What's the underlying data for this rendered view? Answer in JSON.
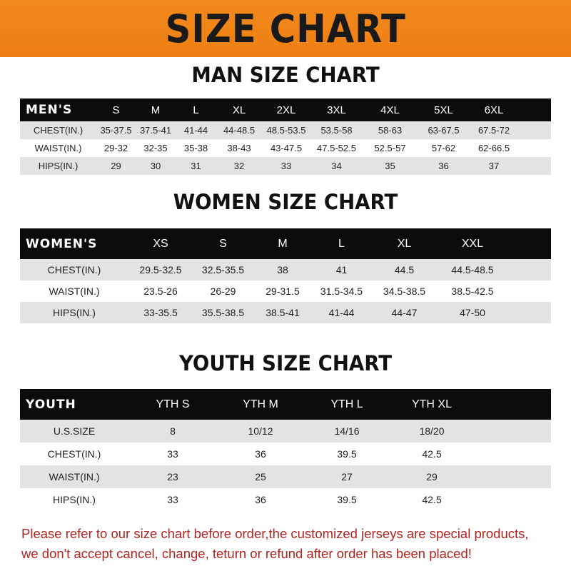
{
  "banner": "SIZE CHART",
  "men": {
    "title": "MAN SIZE CHART",
    "header": [
      "MEN'S",
      "S",
      "M",
      "L",
      "XL",
      "2XL",
      "3XL",
      "4XL",
      "5XL",
      "6XL"
    ],
    "rows": [
      [
        "CHEST(IN.)",
        "35-37.5",
        "37.5-41",
        "41-44",
        "44-48.5",
        "48.5-53.5",
        "53.5-58",
        "58-63",
        "63-67.5",
        "67.5-72"
      ],
      [
        "WAIST(IN.)",
        "29-32",
        "32-35",
        "35-38",
        "38-43",
        "43-47.5",
        "47.5-52.5",
        "52.5-57",
        "57-62",
        "62-66.5"
      ],
      [
        "HIPS(IN.)",
        "29",
        "30",
        "31",
        "32",
        "33",
        "34",
        "35",
        "36",
        "37"
      ]
    ]
  },
  "women": {
    "title": "WOMEN SIZE CHART",
    "header": [
      "WOMEN'S",
      "XS",
      "S",
      "M",
      "L",
      "XL",
      "XXL"
    ],
    "rows": [
      [
        "CHEST(IN.)",
        "29.5-32.5",
        "32.5-35.5",
        "38",
        "41",
        "44.5",
        "44.5-48.5"
      ],
      [
        "WAIST(IN.)",
        "23.5-26",
        "26-29",
        "29-31.5",
        "31.5-34.5",
        "34.5-38.5",
        "38.5-42.5"
      ],
      [
        "HIPS(IN.)",
        "33-35.5",
        "35.5-38.5",
        "38.5-41",
        "41-44",
        "44-47",
        "47-50"
      ]
    ]
  },
  "youth": {
    "title": "YOUTH SIZE CHART",
    "header": [
      "YOUTH",
      "YTH S",
      "YTH M",
      "YTH L",
      "YTH XL"
    ],
    "rows": [
      [
        "U.S.SIZE",
        "8",
        "10/12",
        "14/16",
        "18/20"
      ],
      [
        "CHEST(IN.)",
        "33",
        "36",
        "39.5",
        "42.5"
      ],
      [
        "WAIST(IN.)",
        "23",
        "25",
        "27",
        "29"
      ],
      [
        "HIPS(IN.)",
        "33",
        "36",
        "39.5",
        "42.5"
      ]
    ]
  },
  "note": [
    "Please refer to our size chart before order,the customized jerseys are special products,",
    "we don't accept cancel, change, teturn or refund after order has been placed!"
  ],
  "colors": {
    "banner": "#f08519",
    "header_row": "#0d0b0b",
    "stripe": "#e3e3e3",
    "note": "#b3231f"
  }
}
